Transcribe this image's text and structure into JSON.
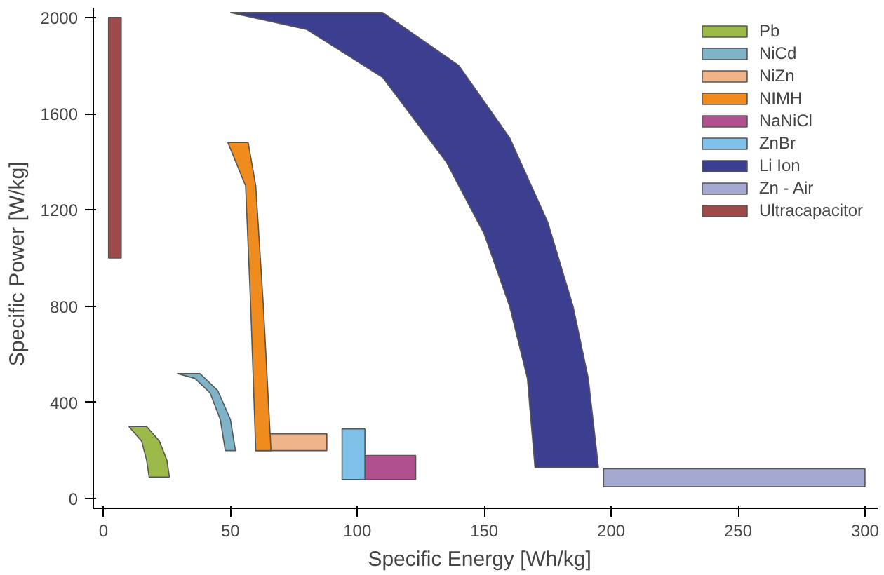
{
  "chart_data": {
    "type": "area",
    "xlabel": "Specific Energy   [Wh/kg]",
    "ylabel": "Specific Power   [W/kg]",
    "xlim": [
      -4,
      305
    ],
    "ylim": [
      -40,
      2040
    ],
    "xticks": [
      0,
      50,
      100,
      150,
      200,
      250,
      300
    ],
    "yticks": [
      0,
      400,
      800,
      1200,
      1600,
      2000
    ],
    "grid": false,
    "legend": "top right",
    "series": [
      {
        "name": "Pb",
        "color": "#9cba4a",
        "x": [
          10,
          17,
          22,
          25,
          26,
          18,
          17,
          15
        ],
        "values": [
          300,
          300,
          240,
          160,
          90,
          90,
          160,
          240
        ]
      },
      {
        "name": "NiCd",
        "color": "#7fb3c8",
        "x": [
          29,
          38,
          45,
          50,
          52,
          48,
          46,
          42,
          36
        ],
        "values": [
          520,
          520,
          450,
          330,
          200,
          200,
          330,
          440,
          500
        ]
      },
      {
        "name": "NiZn",
        "color": "#f0b48a",
        "x": [
          60,
          88,
          88,
          60
        ],
        "values": [
          270,
          270,
          200,
          200
        ]
      },
      {
        "name": "NIMH",
        "color": "#f08c1e",
        "x": [
          49,
          57,
          60,
          63,
          66,
          60,
          58,
          56
        ],
        "values": [
          1480,
          1480,
          1300,
          800,
          200,
          200,
          800,
          1300
        ]
      },
      {
        "name": "NaNiCl",
        "color": "#b0508f",
        "x": [
          103,
          123,
          123,
          103
        ],
        "values": [
          180,
          180,
          80,
          80
        ]
      },
      {
        "name": "ZnBr",
        "color": "#7fc1e8",
        "x": [
          94,
          103,
          103,
          94
        ],
        "values": [
          290,
          290,
          80,
          80
        ]
      },
      {
        "name": "Li Ion",
        "color": "#3c3f8f",
        "x": [
          50,
          110,
          140,
          160,
          175,
          185,
          191,
          195,
          170,
          167,
          160,
          150,
          135,
          110,
          80
        ],
        "values": [
          2020,
          2020,
          1800,
          1500,
          1150,
          800,
          500,
          130,
          130,
          500,
          800,
          1100,
          1400,
          1750,
          1950
        ]
      },
      {
        "name": "Zn - Air",
        "color": "#a5a8d0",
        "x": [
          197,
          300,
          300,
          197
        ],
        "values": [
          125,
          125,
          50,
          50
        ]
      },
      {
        "name": "Ultracapacitor",
        "color": "#9e4a4a",
        "x": [
          2,
          7,
          7,
          2
        ],
        "values": [
          2000,
          2000,
          1000,
          1000
        ]
      }
    ]
  }
}
